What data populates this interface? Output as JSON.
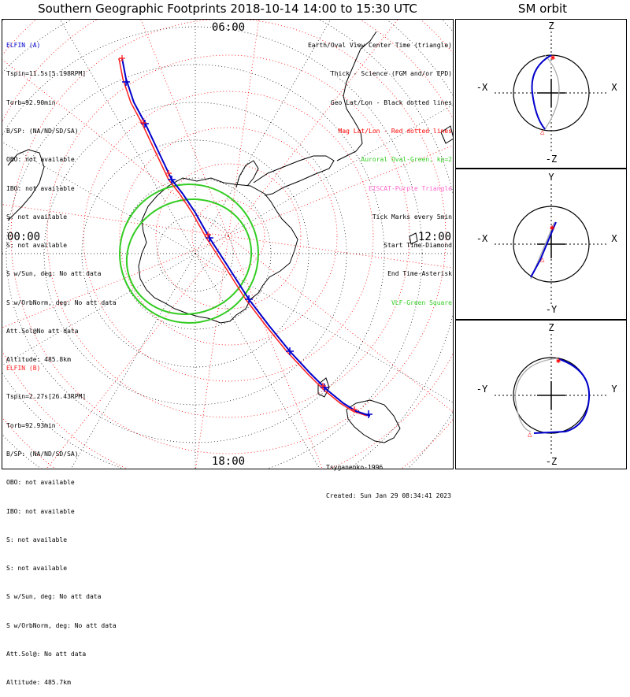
{
  "title": "Southern Geographic Footprints 2018-10-14 14:00 to 15:30 UTC",
  "sm_title": "SM orbit",
  "colors": {
    "elfin_a": "#0000cc",
    "elfin_b": "#ff2020",
    "oval": "#33cc22",
    "geo_grid": "#000000",
    "mag_grid": "#ff0000",
    "purple": "#ff66cc",
    "vlf": "#33cc22"
  },
  "hour_labels": {
    "top": "06:00",
    "left": "00:00",
    "right": "12:00",
    "bottom": "18:00"
  },
  "elfin_a": {
    "header": "ELFIN (A)",
    "lines": [
      "Tspin=11.5s[5.198RPM]",
      "Torb=92.90min",
      "B/SP: (NA/ND/SD/SA)",
      "OBO: not available",
      "IBO: not available",
      "S: not available",
      "S: not available",
      "S w/Sun, deg: No att data",
      "S w/OrbNorm, deg: No att data",
      "Att.Sol@No att data",
      "Altitude: 485.8km"
    ]
  },
  "elfin_b": {
    "header": "ELFIN (B)",
    "lines": [
      "Tspin=2.27s[26.43RPM]",
      "Torb=92.93min",
      "B/SP: (NA/ND/SD/SA)",
      "OBO: not available",
      "IBO: not available",
      "S: not available",
      "S: not available",
      "S w/Sun, deg: No att data",
      "S w/OrbNorm, deg: No att data",
      "Att.Sol@: No att data",
      "Altitude: 485.7km"
    ]
  },
  "legend": [
    {
      "text": "Earth/Oval View Center Time (triangle)",
      "color": "#000000"
    },
    {
      "text": "Thick - Science (FGM and/or EPD)",
      "color": "#000000"
    },
    {
      "text": "Geo Lat/Lon - Black dotted lines",
      "color": "#000000"
    },
    {
      "text": "Mag Lat/Lon - Red dotted lines",
      "color": "#ff0000"
    },
    {
      "text": "Auroral Oval-Green, kp=2",
      "color": "#33cc22"
    },
    {
      "text": "EISCAT-Purple Triangle",
      "color": "#ff66cc"
    },
    {
      "text": "Tick Marks every 5min",
      "color": "#000000"
    },
    {
      "text": "Start Time-Diamond",
      "color": "#000000"
    },
    {
      "text": "End Time-Asterisk",
      "color": "#000000"
    },
    {
      "text": "VLF-Green Square",
      "color": "#33cc22"
    }
  ],
  "footer": [
    "Tsyganenko-1996",
    "Created: Sun Jan 29 08:34:41 2023"
  ],
  "sm_panels": [
    {
      "top": "Z",
      "bottom": "-Z",
      "left": "-X",
      "right": "X"
    },
    {
      "top": "Y",
      "bottom": "-Y",
      "left": "-X",
      "right": "X"
    },
    {
      "top": "Z",
      "bottom": "-Z",
      "left": "-Y",
      "right": "Y"
    }
  ],
  "chart_data": {
    "type": "polar-map",
    "title": "Southern Geographic Footprints 2018-10-14 14:00 to 15:30 UTC",
    "time_range": [
      "14:00",
      "15:30"
    ],
    "tick_interval": "5min",
    "series": [
      {
        "name": "ELFIN (A)",
        "color": "#0000cc"
      },
      {
        "name": "ELFIN (B)",
        "color": "#ff2020"
      }
    ]
  }
}
